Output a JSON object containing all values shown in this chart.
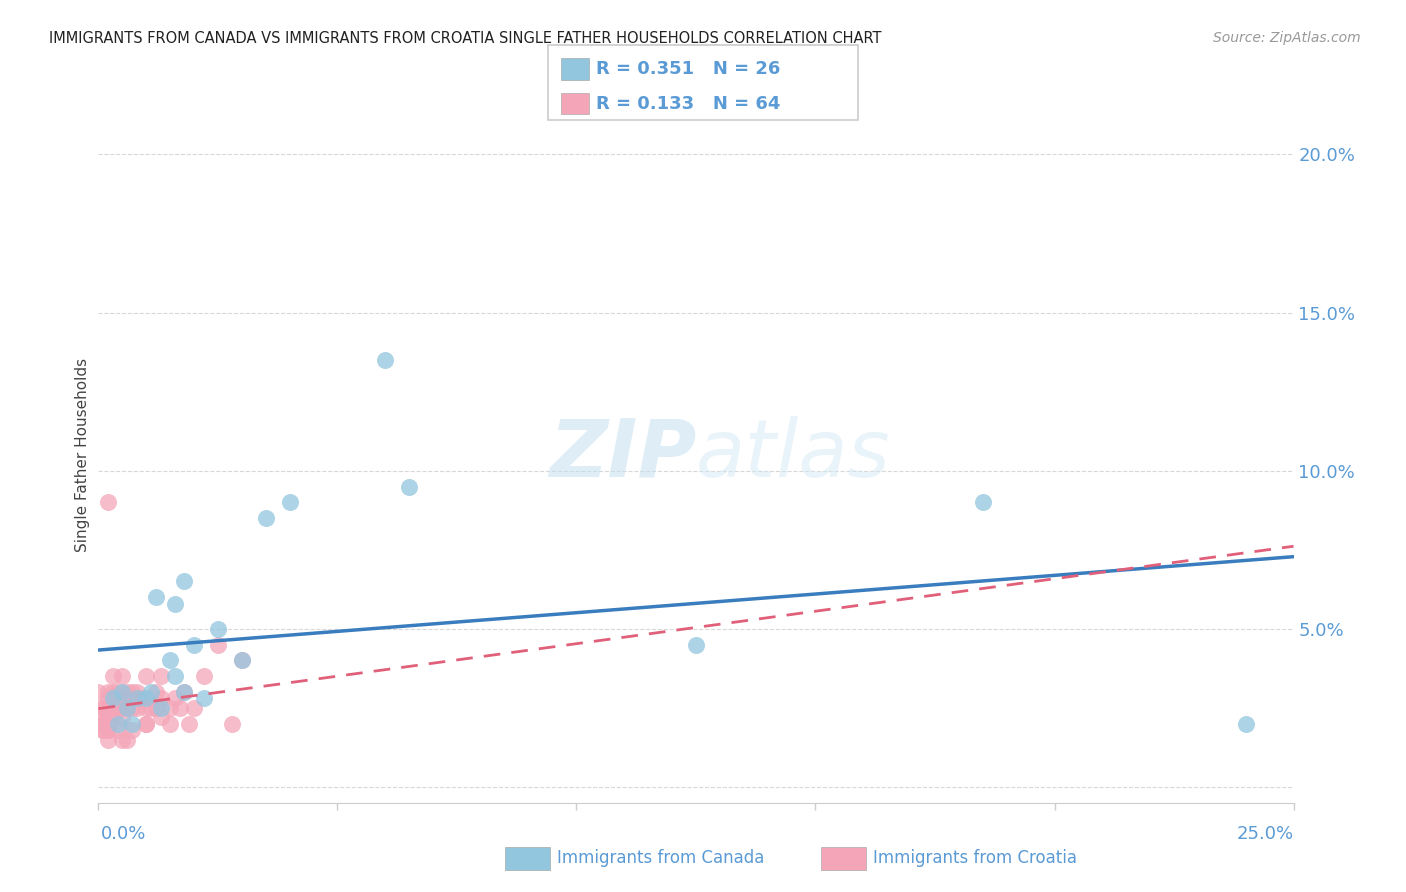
{
  "title": "IMMIGRANTS FROM CANADA VS IMMIGRANTS FROM CROATIA SINGLE FATHER HOUSEHOLDS CORRELATION CHART",
  "source": "Source: ZipAtlas.com",
  "ylabel": "Single Father Households",
  "ytick_values": [
    0.0,
    0.05,
    0.1,
    0.15,
    0.2
  ],
  "xlim": [
    0.0,
    0.25
  ],
  "ylim": [
    -0.005,
    0.215
  ],
  "canada_color": "#92c5de",
  "croatia_color": "#f4a6b8",
  "trendline_canada_color": "#3a7dbf",
  "trendline_croatia_color": "#e0607a",
  "watermark_zip": "ZIP",
  "watermark_atlas": "atlas",
  "canada_x": [
    0.003,
    0.004,
    0.005,
    0.006,
    0.007,
    0.008,
    0.01,
    0.011,
    0.013,
    0.015,
    0.016,
    0.018,
    0.02,
    0.022,
    0.025,
    0.03,
    0.035,
    0.04,
    0.06,
    0.065,
    0.012,
    0.016,
    0.018,
    0.125,
    0.185,
    0.24
  ],
  "canada_y": [
    0.028,
    0.02,
    0.03,
    0.025,
    0.02,
    0.028,
    0.028,
    0.03,
    0.025,
    0.04,
    0.058,
    0.065,
    0.045,
    0.028,
    0.05,
    0.04,
    0.085,
    0.09,
    0.135,
    0.095,
    0.06,
    0.035,
    0.03,
    0.045,
    0.09,
    0.02
  ],
  "croatia_x": [
    0.0,
    0.001,
    0.001,
    0.001,
    0.001,
    0.001,
    0.001,
    0.001,
    0.002,
    0.002,
    0.002,
    0.002,
    0.002,
    0.002,
    0.002,
    0.002,
    0.002,
    0.003,
    0.003,
    0.003,
    0.003,
    0.003,
    0.003,
    0.004,
    0.004,
    0.004,
    0.004,
    0.005,
    0.005,
    0.005,
    0.005,
    0.005,
    0.006,
    0.006,
    0.006,
    0.006,
    0.007,
    0.007,
    0.007,
    0.008,
    0.008,
    0.009,
    0.01,
    0.01,
    0.01,
    0.01,
    0.011,
    0.012,
    0.012,
    0.013,
    0.013,
    0.013,
    0.015,
    0.015,
    0.016,
    0.017,
    0.018,
    0.019,
    0.02,
    0.022,
    0.025,
    0.028,
    0.03,
    0.002
  ],
  "croatia_y": [
    0.03,
    0.02,
    0.025,
    0.02,
    0.025,
    0.018,
    0.022,
    0.018,
    0.03,
    0.028,
    0.025,
    0.02,
    0.018,
    0.022,
    0.018,
    0.015,
    0.02,
    0.028,
    0.025,
    0.022,
    0.028,
    0.035,
    0.03,
    0.025,
    0.03,
    0.025,
    0.018,
    0.028,
    0.022,
    0.025,
    0.035,
    0.015,
    0.025,
    0.028,
    0.03,
    0.015,
    0.025,
    0.03,
    0.018,
    0.025,
    0.03,
    0.028,
    0.02,
    0.025,
    0.035,
    0.02,
    0.025,
    0.03,
    0.025,
    0.028,
    0.035,
    0.022,
    0.025,
    0.02,
    0.028,
    0.025,
    0.03,
    0.02,
    0.025,
    0.035,
    0.045,
    0.02,
    0.04,
    0.09
  ],
  "background_color": "#ffffff",
  "grid_color": "#d8d8d8",
  "legend_R_canada": "0.351",
  "legend_N_canada": "26",
  "legend_R_croatia": "0.133",
  "legend_N_croatia": "64"
}
